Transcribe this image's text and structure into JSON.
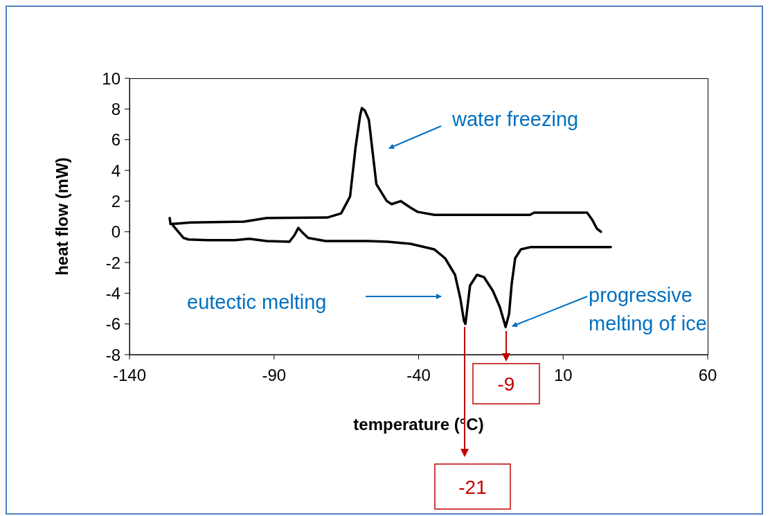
{
  "chart_data": {
    "type": "line",
    "xlabel": "temperature (°C)",
    "ylabel": "heat flow (mW)",
    "xlim": [
      -140,
      60
    ],
    "xticks": [
      -140,
      -90,
      -40,
      10,
      60
    ],
    "ylim": [
      -8,
      10
    ],
    "yticks": [
      -8,
      -6,
      -4,
      -2,
      0,
      2,
      4,
      6,
      8,
      10
    ],
    "marker": "none",
    "line_style": "solid",
    "series": [
      {
        "color": "#000000",
        "x": [
          -126.1,
          -125.8,
          -118.9,
          -100.4,
          -92.5,
          -71.6,
          -66.8,
          -63.7,
          -61.8,
          -60.2,
          -59.6,
          -58.6,
          -57.2,
          -54.6,
          -51,
          -49.3,
          -46.2,
          -43,
          -40.4,
          -34.5,
          -20,
          -1.5,
          0,
          18.3,
          20,
          21.7,
          23.1
        ],
        "values": [
          0.9,
          0.5,
          0.6,
          0.66,
          0.9,
          0.93,
          1.2,
          2.3,
          5.5,
          7.6,
          8.06,
          7.9,
          7.3,
          3.1,
          2,
          1.8,
          2,
          1.6,
          1.3,
          1.1,
          1.1,
          1.1,
          1.25,
          1.25,
          0.8,
          0.2,
          0
        ]
      },
      {
        "color": "#000000",
        "x": [
          -124.9,
          -121.3,
          -119.6,
          -112.9,
          -103.4,
          -98.6,
          -92.6,
          -84.7,
          -83,
          -81.6,
          -80.4,
          -78.2,
          -72.2,
          -57.8,
          -50.7,
          -42.8,
          -34.6,
          -30.8,
          -27.4,
          -25.5,
          -24.3,
          -23.8,
          -22.2,
          -19.8,
          -17.4,
          -14.3,
          -11.9,
          -9.9,
          -8.7,
          -7.8,
          -6.6,
          -4.6,
          -1.3,
          26.5
        ],
        "values": [
          0.4,
          -0.4,
          -0.5,
          -0.55,
          -0.55,
          -0.45,
          -0.6,
          -0.65,
          -0.24,
          0.25,
          0,
          -0.4,
          -0.6,
          -0.6,
          -0.65,
          -0.78,
          -1.14,
          -1.73,
          -2.8,
          -4.4,
          -5.8,
          -6,
          -3.5,
          -2.8,
          -2.95,
          -3.85,
          -4.9,
          -6.2,
          -5.35,
          -3.4,
          -1.73,
          -1.14,
          -1,
          -1
        ]
      }
    ],
    "annotations": [
      "water freezing",
      "eutectic melting",
      "progressive melting of ice",
      "-21",
      "-9"
    ]
  }
}
